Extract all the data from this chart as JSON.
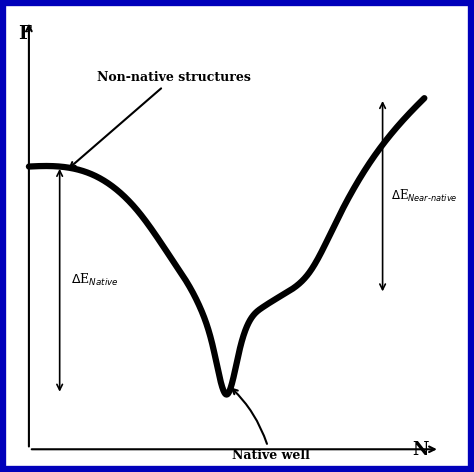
{
  "title": "",
  "xlabel": "N",
  "ylabel": "F",
  "background_color": "#ffffff",
  "border_color": "#0000bb",
  "border_linewidth": 3.0,
  "curve_color": "#000000",
  "curve_linewidth": 4.5,
  "annotation_non_native": "Non-native structures",
  "annotation_native_well": "Native well",
  "figsize": [
    4.74,
    4.72
  ],
  "dpi": 100,
  "xlim": [
    0,
    10
  ],
  "ylim": [
    0,
    10
  ],
  "curve_x_keypoints": [
    0.5,
    1.2,
    2.0,
    3.0,
    3.8,
    4.4,
    4.7,
    5.0,
    5.3,
    5.8,
    6.3,
    6.9,
    7.5,
    8.2,
    9.0,
    9.5
  ],
  "curve_y_keypoints": [
    6.5,
    6.5,
    6.3,
    5.5,
    4.4,
    3.4,
    2.5,
    1.5,
    2.5,
    3.4,
    3.7,
    4.2,
    5.3,
    6.5,
    7.5,
    8.0
  ]
}
